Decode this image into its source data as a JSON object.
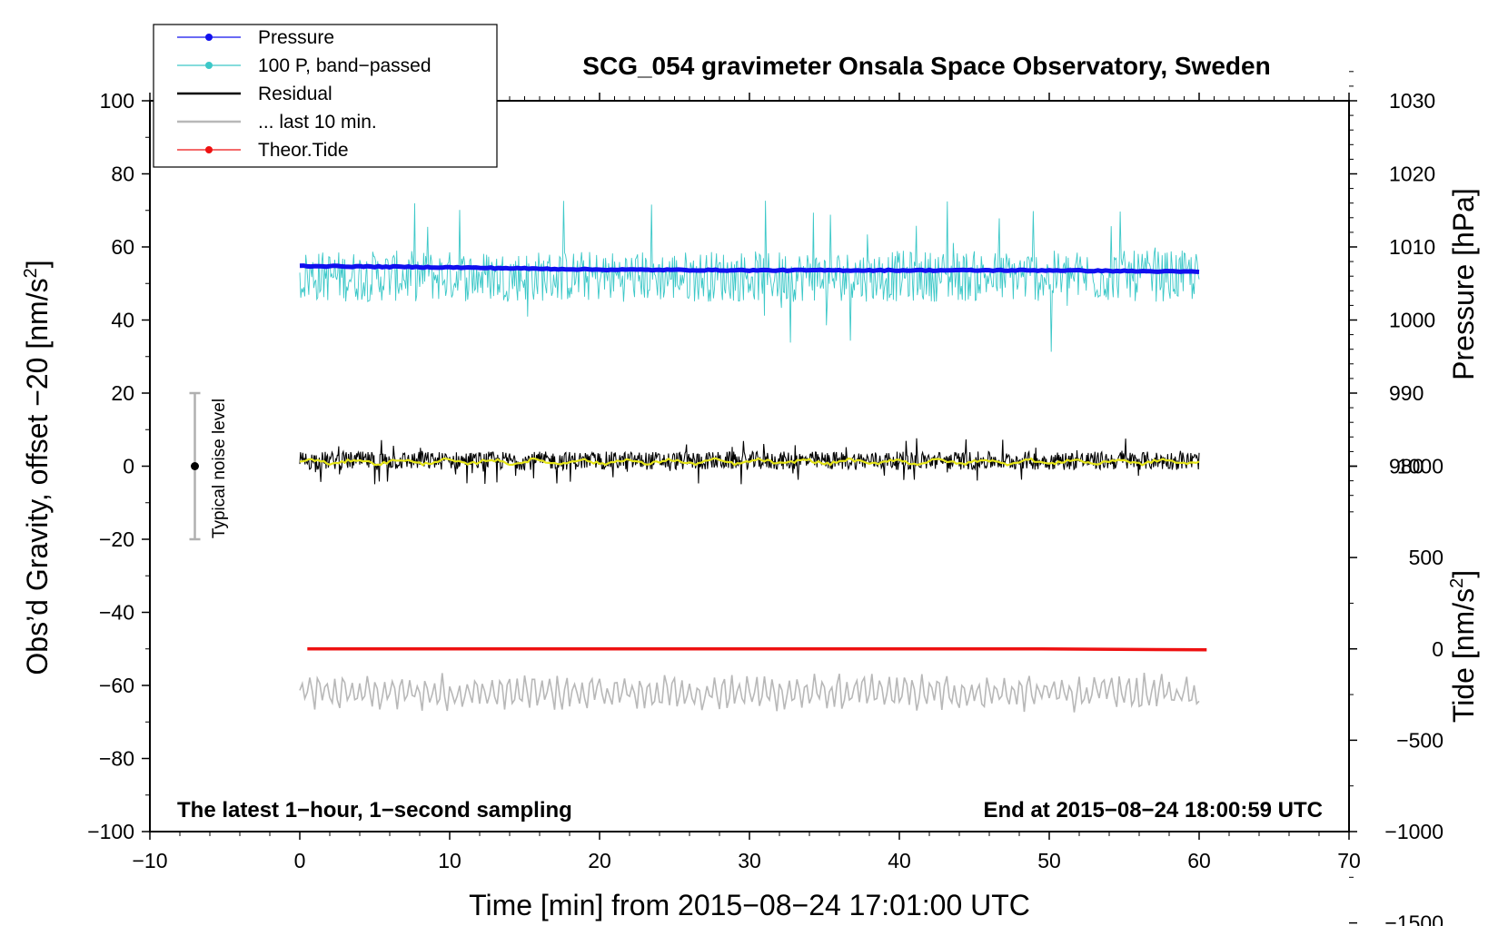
{
  "chart_data": {
    "type": "line",
    "title": "SCG_054 gravimeter Onsala Space Observatory, Sweden",
    "xlabel": "Time [min] from 2015−08−24 17:01:00 UTC",
    "ylabel_left": "Obs’d Gravity, offset −20 [nm/s",
    "ylabel_right_pressure": "Pressure [hPa]",
    "ylabel_right_tide": "Tide [nm/s",
    "xlim": [
      -10,
      70
    ],
    "ylim_left": [
      -100,
      100
    ],
    "xticks": [
      -10,
      0,
      10,
      20,
      30,
      40,
      50,
      60,
      70
    ],
    "xtick_labels": [
      "−10",
      "0",
      "10",
      "20",
      "30",
      "40",
      "50",
      "60",
      "70"
    ],
    "yticks_left": [
      -100,
      -80,
      -60,
      -40,
      -20,
      0,
      20,
      40,
      60,
      80,
      100
    ],
    "ytick_labels_left": [
      "−100",
      "−80",
      "−60",
      "−40",
      "−20",
      "0",
      "20",
      "40",
      "60",
      "80",
      "100"
    ],
    "pressure_axis": {
      "ticks": [
        980,
        990,
        1000,
        1010,
        1020,
        1030
      ],
      "tick_labels": [
        "980",
        "990",
        "1000",
        "1010",
        "1020",
        "1030"
      ],
      "gravity_at_1000": 40,
      "gravity_per_hPa": 2
    },
    "tide_axis": {
      "ticks": [
        -1500,
        -1000,
        -500,
        0,
        500,
        1000
      ],
      "tick_labels": [
        "−1500",
        "−1000",
        "−500",
        "0",
        "500",
        "1000"
      ],
      "gravity_at_0": -50,
      "gravity_per_unit": 0.05
    },
    "annotation_left": "The latest 1−hour, 1−second sampling",
    "annotation_right": "End at 2015−08−24 18:00:59 UTC",
    "noise_bar": {
      "label": "Typical noise level",
      "x": -7,
      "center": 0,
      "half_range": 20
    },
    "legend": [
      {
        "label": "Pressure",
        "color": "#1010ee",
        "marker": true
      },
      {
        "label": "100 P, band−passed",
        "color": "#3cc8c8",
        "marker": true
      },
      {
        "label": "Residual",
        "color": "#000000",
        "marker": false
      },
      {
        "label": "... last 10 min.",
        "color": "#b8b8b8",
        "marker": false
      },
      {
        "label": "Theor.Tide",
        "color": "#ee1111",
        "marker": true
      }
    ],
    "series": [
      {
        "name": "Pressure",
        "color": "#1010ee",
        "unit": "hPa",
        "x_range": [
          0,
          60
        ],
        "x": [
          0,
          10,
          20,
          30,
          40,
          50,
          60
        ],
        "values": [
          1007.4,
          1007.2,
          1006.9,
          1006.8,
          1006.8,
          1006.8,
          1006.6
        ]
      },
      {
        "name": "100 P, band−passed",
        "color": "#3cc8c8",
        "unit": "nm/s2",
        "x_range": [
          0,
          60
        ],
        "mean": 52,
        "amplitude": 7,
        "extremes": [
          74,
          27
        ]
      },
      {
        "name": "Residual",
        "color": "#000000",
        "unit": "nm/s2",
        "x_range": [
          0,
          60
        ],
        "mean": 1.5,
        "amplitude": 2.5,
        "extremes": [
          9,
          -6
        ]
      },
      {
        "name": "Residual smoothed",
        "color": "#e6e619",
        "unit": "nm/s2",
        "x_range": [
          0,
          60
        ],
        "mean": 1.2,
        "amplitude": 0.8
      },
      {
        "name": "... last 10 min.",
        "color": "#b8b8b8",
        "unit": "nm/s2",
        "x_range": [
          0,
          60
        ],
        "mean": -62,
        "amplitude": 3.5,
        "extremes": [
          -54,
          -68
        ]
      },
      {
        "name": "Theor.Tide",
        "color": "#ee1111",
        "unit": "nm/s2 (tide axis)",
        "x_range": [
          0.5,
          60.5
        ],
        "x": [
          0.5,
          49.5,
          60.5
        ],
        "values": [
          0,
          0,
          -5
        ]
      }
    ]
  }
}
